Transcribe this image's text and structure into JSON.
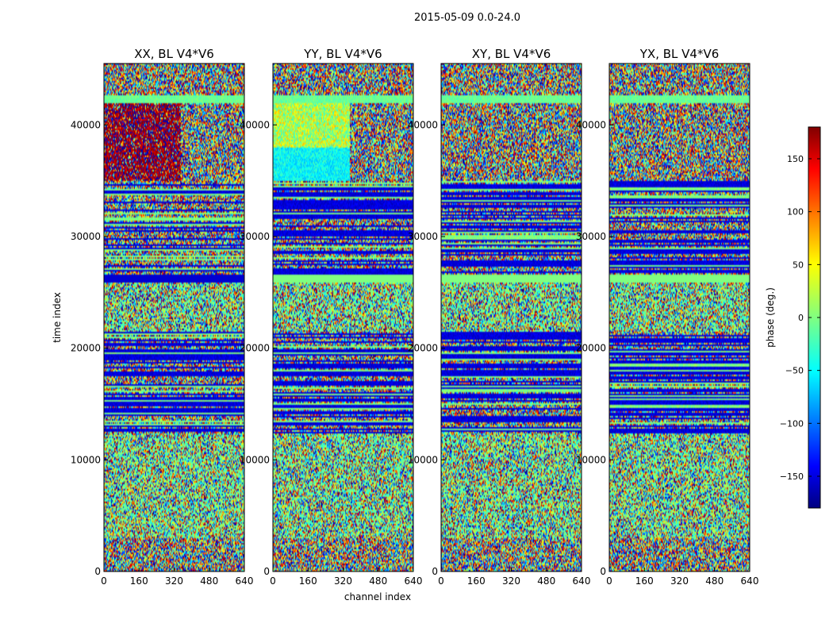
{
  "chart_data": {
    "type": "heatmap",
    "suptitle": "2015-05-09 0.0-24.0",
    "xlabel": "channel index",
    "ylabel": "time index",
    "xlim": [
      0,
      640
    ],
    "ylim": [
      0,
      45500
    ],
    "xticks": [
      0,
      160,
      320,
      480,
      640
    ],
    "yticks": [
      0,
      10000,
      20000,
      30000,
      40000
    ],
    "panels": [
      {
        "title": "XX, BL V4*V6",
        "pol": "XX"
      },
      {
        "title": "YY, BL V4*V6",
        "pol": "YY"
      },
      {
        "title": "XY, BL V4*V6",
        "pol": "XY"
      },
      {
        "title": "YX, BL V4*V6",
        "pol": "YX"
      }
    ],
    "colorbar": {
      "label": "phase (deg.)",
      "range": [
        -180,
        180
      ],
      "ticks": [
        150,
        100,
        50,
        0,
        -50,
        -100,
        -150
      ],
      "colormap": "jet"
    },
    "bands": [
      {
        "from": 0,
        "to": 3000,
        "kind": "noise"
      },
      {
        "from": 3000,
        "to": 12500,
        "kind": "noise-green"
      },
      {
        "from": 12500,
        "to": 21500,
        "kind": "striped-dark"
      },
      {
        "from": 21500,
        "to": 26000,
        "kind": "noise-green"
      },
      {
        "from": 26000,
        "to": 26600,
        "kind": "solid-line"
      },
      {
        "from": 26600,
        "to": 35000,
        "kind": "striped-dark"
      },
      {
        "from": 35000,
        "to": 42000,
        "kind": "noise"
      },
      {
        "from": 42000,
        "to": 42700,
        "kind": "green-band"
      },
      {
        "from": 42700,
        "to": 45500,
        "kind": "noise"
      }
    ]
  }
}
